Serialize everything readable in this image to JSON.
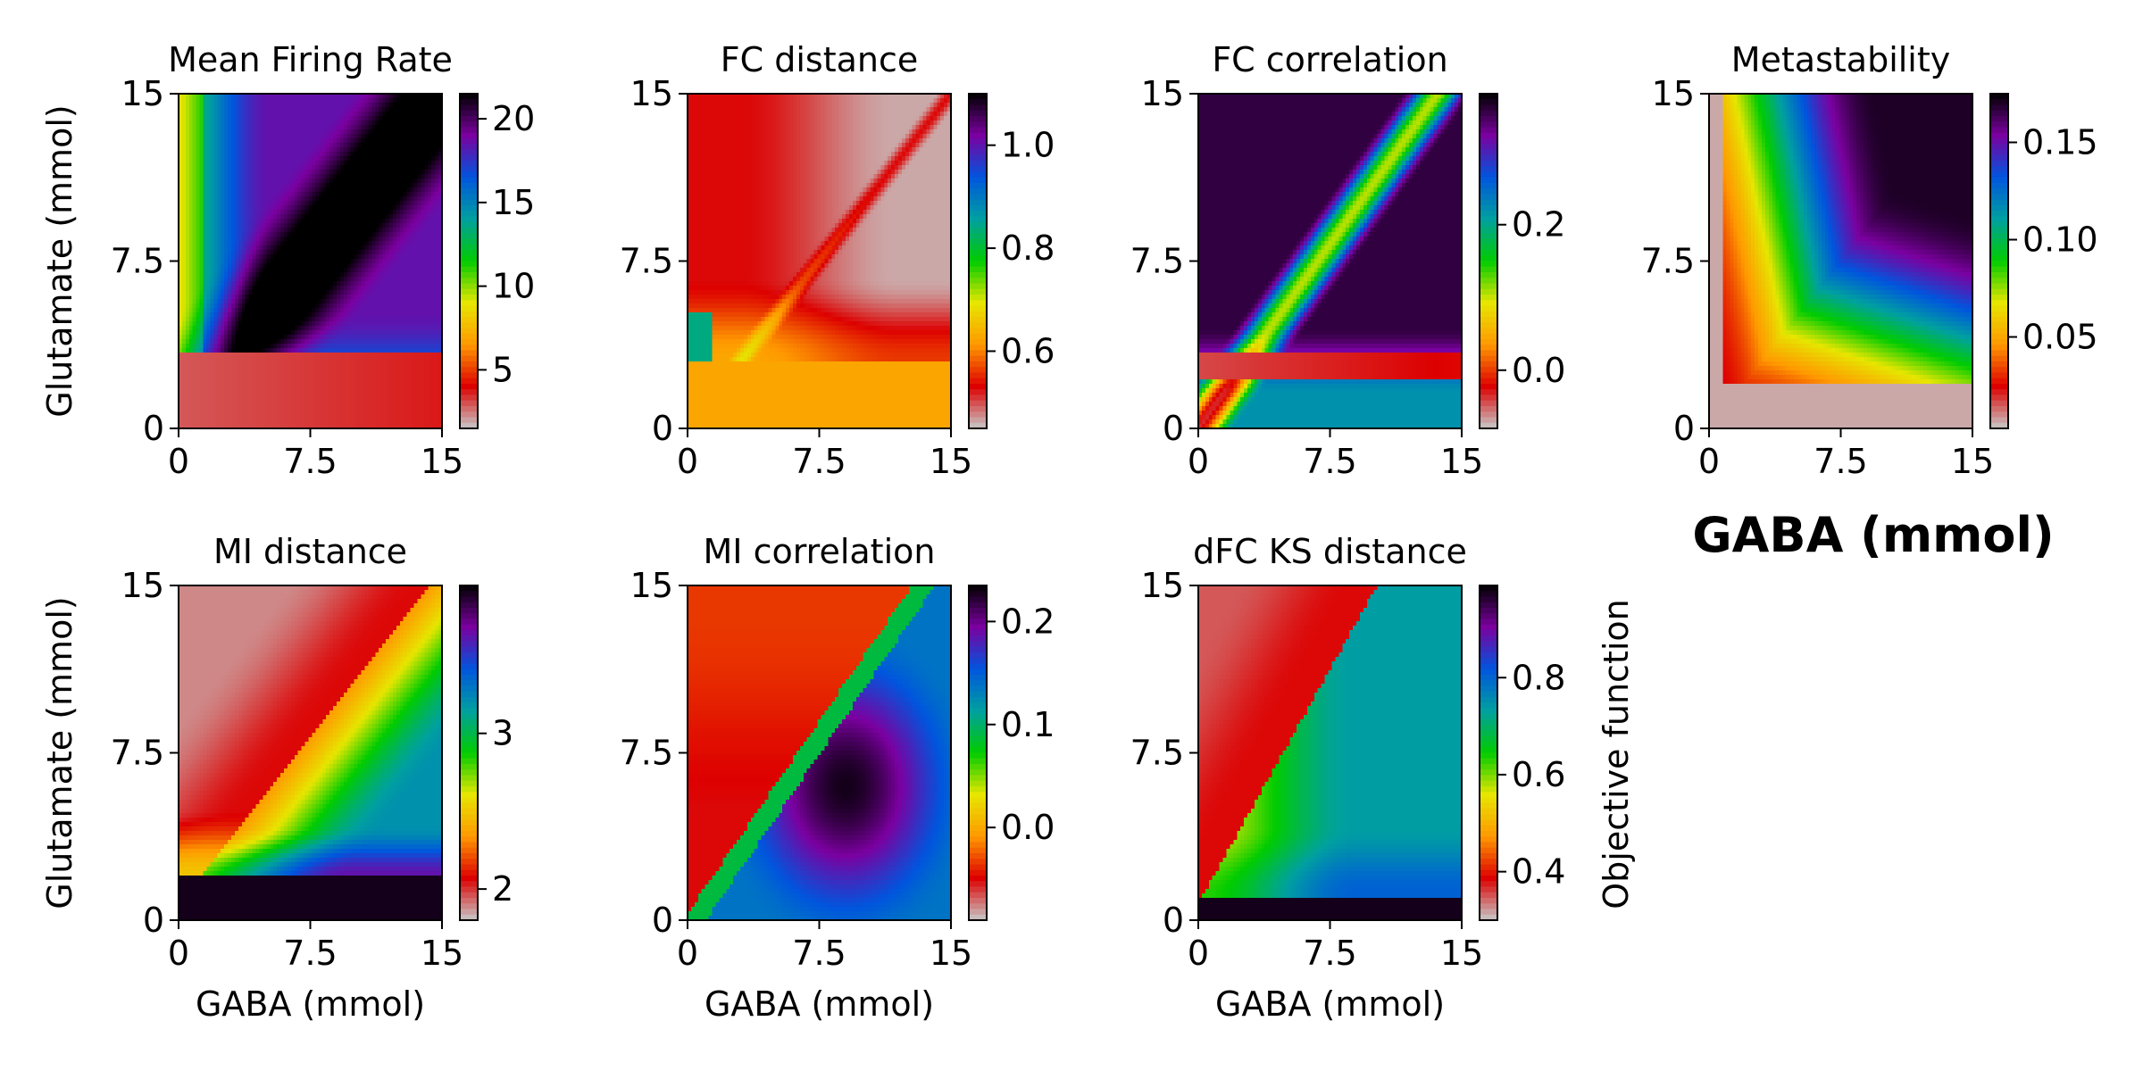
{
  "figure": {
    "shared_xlabel": "GABA (mmol)",
    "shared_ylabel": "Glutamate (mmol)",
    "colorbar_label": "Objective function",
    "corner_xlabel": "GABA (mmol)"
  },
  "colors": {
    "colormap": "nipy_spectral (reversed, gray-red-orange-yellow-green-cyan-blue-purple-black)",
    "stops": [
      "#c8c8c8",
      "#dd0000",
      "#ff9900",
      "#e6e600",
      "#00cc00",
      "#00a0a0",
      "#0055dd",
      "#7b00a0",
      "#000000"
    ]
  },
  "chart_data": [
    {
      "type": "heatmap",
      "title": "Mean Firing Rate",
      "xlabel": "",
      "ylabel": "Glutamate (mmol)",
      "xlim": [
        0,
        15
      ],
      "ylim": [
        0,
        15
      ],
      "xticks": [
        "0",
        "7.5",
        "15"
      ],
      "yticks": [
        "0",
        "7.5",
        "15"
      ],
      "colorbar": {
        "range": [
          1.5,
          21.5
        ],
        "ticks": [
          5,
          10,
          15,
          20
        ],
        "tick_labels": [
          "5",
          "10",
          "15",
          "20"
        ]
      },
      "features": "low (~3) below glutamate 3.5; sharp rise above; peak ~21 along diagonal band around GABA 7-15, glutamate 7-15"
    },
    {
      "type": "heatmap",
      "title": "FC distance",
      "xlabel": "",
      "ylabel": "",
      "xlim": [
        0,
        15
      ],
      "ylim": [
        0,
        15
      ],
      "xticks": [
        "0",
        "7.5",
        "15"
      ],
      "yticks": [
        "0",
        "7.5",
        "15"
      ],
      "colorbar": {
        "range": [
          0.45,
          1.1
        ],
        "ticks": [
          0.6,
          0.8,
          1.0
        ],
        "tick_labels": [
          "0.6",
          "0.8",
          "1.0"
        ]
      },
      "features": "~0.62 below glutamate 3; ~0.5 mostly above; minimum ~0.47 upper right; up to ~1.0 near origin"
    },
    {
      "type": "heatmap",
      "title": "FC correlation",
      "xlabel": "",
      "ylabel": "",
      "xlim": [
        0,
        15
      ],
      "ylim": [
        0,
        15
      ],
      "xticks": [
        "0",
        "7.5",
        "15"
      ],
      "yticks": [
        "0",
        "7.5",
        "15"
      ],
      "colorbar": {
        "range": [
          -0.08,
          0.38
        ],
        "ticks": [
          0.0,
          0.2
        ],
        "tick_labels": [
          "0.0",
          "0.2"
        ]
      },
      "features": "max ~0.37 in large upper region; diagonal band lower; ~-0.05 near glutamate 2-3"
    },
    {
      "type": "heatmap",
      "title": "Metastability",
      "xlabel": "",
      "ylabel": "",
      "xlim": [
        0,
        15
      ],
      "ylim": [
        0,
        15
      ],
      "xticks": [
        "0",
        "7.5",
        "15"
      ],
      "yticks": [
        "0",
        "7.5",
        "15"
      ],
      "colorbar": {
        "range": [
          0.003,
          0.175
        ],
        "ticks": [
          0.05,
          0.1,
          0.15
        ],
        "tick_labels": [
          "0.05",
          "0.10",
          "0.15"
        ]
      },
      "features": "~0.005 below glutamate 2 and left of GABA 1; rising to ~0.17 at upper right"
    },
    {
      "type": "heatmap",
      "title": "MI distance",
      "xlabel": "GABA (mmol)",
      "ylabel": "Glutamate (mmol)",
      "xlim": [
        0,
        15
      ],
      "ylim": [
        0,
        15
      ],
      "xticks": [
        "0",
        "7.5",
        "15"
      ],
      "yticks": [
        "0",
        "7.5",
        "15"
      ],
      "colorbar": {
        "range": [
          1.8,
          3.95
        ],
        "ticks": [
          2,
          3
        ],
        "tick_labels": [
          "2",
          "3"
        ]
      },
      "features": "max ~3.9 bottom band below glutamate 2; ~1.9 upper left region; gradient toward right"
    },
    {
      "type": "heatmap",
      "title": "MI correlation",
      "xlabel": "GABA (mmol)",
      "ylabel": "",
      "xlim": [
        0,
        15
      ],
      "ylim": [
        0,
        15
      ],
      "xticks": [
        "0",
        "7.5",
        "15"
      ],
      "yticks": [
        "0",
        "7.5",
        "15"
      ],
      "colorbar": {
        "range": [
          -0.09,
          0.235
        ],
        "ticks": [
          0.0,
          0.1,
          0.2
        ],
        "tick_labels": [
          "0.0",
          "0.1",
          "0.2"
        ]
      },
      "features": "~-0.05 upper-left wedge; ~0.2 lower-right wedge; max near GABA 9, glutamate 6"
    },
    {
      "type": "heatmap",
      "title": "dFC KS distance",
      "xlabel": "GABA (mmol)",
      "ylabel": "",
      "xlim": [
        0,
        15
      ],
      "ylim": [
        0,
        15
      ],
      "xticks": [
        "0",
        "7.5",
        "15"
      ],
      "yticks": [
        "0",
        "7.5",
        "15"
      ],
      "colorbar": {
        "range": [
          0.3,
          0.99
        ],
        "ticks": [
          0.4,
          0.6,
          0.8
        ],
        "tick_labels": [
          "0.4",
          "0.6",
          "0.8"
        ],
        "label": "Objective function"
      },
      "features": "~0.4 upper-left wedge; ~0.65 right region; ~0.99 at bottom-left below glutamate 1"
    }
  ]
}
